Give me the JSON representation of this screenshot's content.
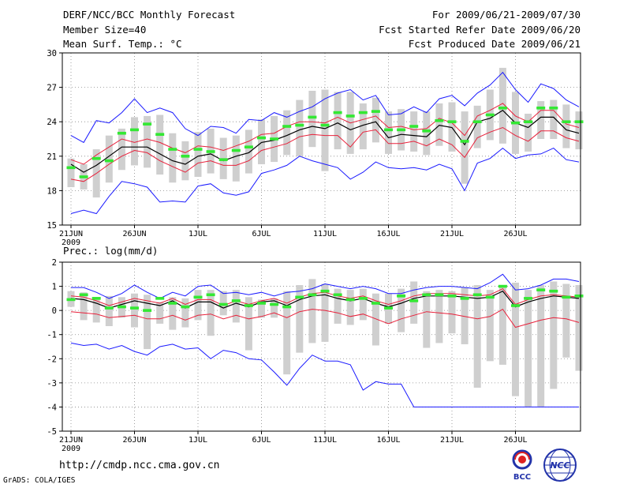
{
  "header": {
    "title": "DERF/NCC/BCC Monthly Forecast",
    "member_size": "Member Size=40",
    "variable": "Mean Surf. Temp.: °C",
    "period": "For 2009/06/21-2009/07/30",
    "started": "Fcst Started Refer Date 2009/06/20",
    "produced": "Fcst Produced Date 2009/06/21"
  },
  "footer": {
    "url": "http://cmdp.ncc.cma.gov.cn",
    "credit": "GrADS: COLA/IGES",
    "logo_bcc": "BCC",
    "logo_ncc": "NCC"
  },
  "colors": {
    "mean": "#000000",
    "spread": "#e8203a",
    "extreme": "#1a1aff",
    "box": "#cfcfcf",
    "marker": "#33e833",
    "grid": "#888888"
  },
  "chart_data": [
    {
      "type": "line",
      "title": "Mean Surf. Temp.: °C",
      "ylim": [
        15,
        30
      ],
      "yticks": [
        15,
        18,
        21,
        24,
        27,
        30
      ],
      "xticks": [
        {
          "day": 1,
          "label": "21JUN"
        },
        {
          "day": 6,
          "label": "26JUN"
        },
        {
          "day": 11,
          "label": "1JUL"
        },
        {
          "day": 16,
          "label": "6JUL"
        },
        {
          "day": 21,
          "label": "11JUL"
        },
        {
          "day": 26,
          "label": "16JUL"
        },
        {
          "day": 31,
          "label": "21JUL"
        },
        {
          "day": 36,
          "label": "26JUL"
        }
      ],
      "year_label": "2009",
      "series": [
        {
          "name": "max",
          "values": [
            22.8,
            22.2,
            24.1,
            23.9,
            24.8,
            26.0,
            24.8,
            25.2,
            24.8,
            23.4,
            22.8,
            23.6,
            23.5,
            23.0,
            24.2,
            24.1,
            24.8,
            24.4,
            24.9,
            25.3,
            26.0,
            26.5,
            26.8,
            25.9,
            26.3,
            24.6,
            24.7,
            25.3,
            24.8,
            26.0,
            26.3,
            25.4,
            26.5,
            27.2,
            28.3,
            26.8,
            25.7,
            27.3,
            26.9,
            25.9,
            25.3
          ]
        },
        {
          "name": "upper",
          "values": [
            20.7,
            20.3,
            21.1,
            21.8,
            22.5,
            22.2,
            22.5,
            22.2,
            21.7,
            21.3,
            21.9,
            21.8,
            21.5,
            21.9,
            22.3,
            22.9,
            23.0,
            23.6,
            24.0,
            24.0,
            23.9,
            24.4,
            23.9,
            24.2,
            24.5,
            23.5,
            23.6,
            23.3,
            23.4,
            24.3,
            23.9,
            22.8,
            24.5,
            25.0,
            25.6,
            24.5,
            24.0,
            25.0,
            25.0,
            23.8,
            23.5
          ]
        },
        {
          "name": "mean",
          "values": [
            20.3,
            19.6,
            20.2,
            21.0,
            21.8,
            21.8,
            21.8,
            21.2,
            20.6,
            20.3,
            21.0,
            21.2,
            20.6,
            21.0,
            21.3,
            22.2,
            22.4,
            22.8,
            23.3,
            23.6,
            23.4,
            23.9,
            23.3,
            23.7,
            24.0,
            22.6,
            22.9,
            22.8,
            22.7,
            23.7,
            23.5,
            22.0,
            24.0,
            24.3,
            25.0,
            23.9,
            23.5,
            24.4,
            24.4,
            23.3,
            23.0
          ]
        },
        {
          "name": "lower",
          "values": [
            19.0,
            18.8,
            19.5,
            20.3,
            21.0,
            21.5,
            21.3,
            20.6,
            20.1,
            19.6,
            20.4,
            20.6,
            20.2,
            20.2,
            20.6,
            21.5,
            21.8,
            22.1,
            22.7,
            22.9,
            22.8,
            22.8,
            21.8,
            23.1,
            23.3,
            22.1,
            22.1,
            22.3,
            21.9,
            22.5,
            22.0,
            20.9,
            22.6,
            23.1,
            23.5,
            22.8,
            22.3,
            23.2,
            23.2,
            22.6,
            22.3
          ]
        },
        {
          "name": "min",
          "values": [
            16.0,
            16.3,
            16.0,
            17.5,
            18.8,
            18.6,
            18.3,
            17.0,
            17.1,
            17.0,
            18.4,
            18.6,
            17.8,
            17.6,
            17.9,
            19.5,
            19.8,
            20.2,
            21.0,
            20.6,
            20.3,
            20.0,
            19.0,
            19.6,
            20.5,
            20.0,
            19.9,
            20.0,
            19.8,
            20.3,
            19.9,
            18.0,
            20.4,
            20.8,
            21.7,
            20.8,
            21.1,
            21.2,
            21.7,
            20.7,
            20.5
          ]
        },
        {
          "name": "box_top",
          "values": [
            20.8,
            20.3,
            21.6,
            22.8,
            23.4,
            24.4,
            24.5,
            24.6,
            23.0,
            22.3,
            23.1,
            23.4,
            22.6,
            22.8,
            23.3,
            24.2,
            24.5,
            25.0,
            25.9,
            26.7,
            26.8,
            26.6,
            26.6,
            25.6,
            26.1,
            24.9,
            25.1,
            24.9,
            24.9,
            25.6,
            25.7,
            24.9,
            25.4,
            26.8,
            28.7,
            26.6,
            24.7,
            25.8,
            25.9,
            25.5,
            24.9
          ]
        },
        {
          "name": "box_bottom",
          "values": [
            18.3,
            18.1,
            17.4,
            18.7,
            19.8,
            20.2,
            20.0,
            19.4,
            18.7,
            18.9,
            19.2,
            19.5,
            19.0,
            18.8,
            19.5,
            20.3,
            20.5,
            21.1,
            21.0,
            21.8,
            19.7,
            21.6,
            21.2,
            21.6,
            22.2,
            21.2,
            21.5,
            21.4,
            21.1,
            21.9,
            21.4,
            18.6,
            21.7,
            22.4,
            22.1,
            21.2,
            21.4,
            22.5,
            22.5,
            21.7,
            21.6
          ]
        },
        {
          "name": "marker",
          "values": [
            20.0,
            19.2,
            20.8,
            20.6,
            23.0,
            23.3,
            23.8,
            22.9,
            21.6,
            21.0,
            21.6,
            21.4,
            20.7,
            21.5,
            21.8,
            22.6,
            22.5,
            23.6,
            23.7,
            24.4,
            23.7,
            24.8,
            24.5,
            24.8,
            24.9,
            23.3,
            23.3,
            23.6,
            23.2,
            24.1,
            24.0,
            22.3,
            24.0,
            24.6,
            25.2,
            23.9,
            24.0,
            25.2,
            25.2,
            24.0,
            24.0
          ]
        }
      ]
    },
    {
      "type": "line",
      "title": "Prec.: log(mm/d)",
      "ylim": [
        -5,
        2
      ],
      "yticks": [
        -5,
        -4,
        -3,
        -2,
        -1,
        0,
        1,
        2
      ],
      "xticks": [
        {
          "day": 1,
          "label": "21JUN"
        },
        {
          "day": 6,
          "label": "26JUN"
        },
        {
          "day": 11,
          "label": "1JUL"
        },
        {
          "day": 16,
          "label": "6JUL"
        },
        {
          "day": 21,
          "label": "11JUL"
        },
        {
          "day": 26,
          "label": "16JUL"
        },
        {
          "day": 31,
          "label": "21JUL"
        },
        {
          "day": 36,
          "label": "26JUL"
        }
      ],
      "year_label": "2009",
      "series": [
        {
          "name": "max",
          "values": [
            0.95,
            0.95,
            0.75,
            0.5,
            0.7,
            1.05,
            0.75,
            0.5,
            0.75,
            0.6,
            1.0,
            1.05,
            0.7,
            0.75,
            0.65,
            0.75,
            0.6,
            0.75,
            0.8,
            0.9,
            1.1,
            1.0,
            0.9,
            1.0,
            0.9,
            0.7,
            0.7,
            0.85,
            0.95,
            1.0,
            1.0,
            0.95,
            0.9,
            1.15,
            1.5,
            0.85,
            0.9,
            1.05,
            1.3,
            1.3,
            1.2
          ]
        },
        {
          "name": "upper",
          "values": [
            0.6,
            0.55,
            0.4,
            0.2,
            0.35,
            0.5,
            0.4,
            0.3,
            0.5,
            0.25,
            0.45,
            0.45,
            0.2,
            0.4,
            0.25,
            0.4,
            0.5,
            0.3,
            0.55,
            0.7,
            0.75,
            0.6,
            0.5,
            0.6,
            0.4,
            0.25,
            0.4,
            0.6,
            0.7,
            0.7,
            0.7,
            0.65,
            0.6,
            0.65,
            0.9,
            0.25,
            0.45,
            0.6,
            0.65,
            0.6,
            0.55
          ]
        },
        {
          "name": "mean",
          "values": [
            0.5,
            0.45,
            0.3,
            0.1,
            0.25,
            0.4,
            0.3,
            0.2,
            0.4,
            0.1,
            0.35,
            0.35,
            0.1,
            0.3,
            0.15,
            0.35,
            0.4,
            0.2,
            0.45,
            0.6,
            0.65,
            0.5,
            0.4,
            0.5,
            0.3,
            0.15,
            0.3,
            0.5,
            0.6,
            0.6,
            0.6,
            0.55,
            0.5,
            0.55,
            0.8,
            0.15,
            0.35,
            0.5,
            0.6,
            0.55,
            0.5
          ]
        },
        {
          "name": "lower",
          "values": [
            -0.05,
            -0.1,
            -0.15,
            -0.3,
            -0.25,
            -0.2,
            -0.35,
            -0.35,
            -0.2,
            -0.4,
            -0.2,
            -0.15,
            -0.35,
            -0.2,
            -0.35,
            -0.25,
            -0.1,
            -0.3,
            -0.05,
            0.05,
            0.0,
            -0.1,
            -0.25,
            -0.15,
            -0.35,
            -0.55,
            -0.35,
            -0.2,
            -0.05,
            -0.1,
            -0.15,
            -0.25,
            -0.35,
            -0.25,
            0.05,
            -0.7,
            -0.55,
            -0.4,
            -0.3,
            -0.35,
            -0.5
          ]
        },
        {
          "name": "min",
          "values": [
            -1.35,
            -1.45,
            -1.4,
            -1.6,
            -1.45,
            -1.7,
            -1.85,
            -1.5,
            -1.4,
            -1.6,
            -1.55,
            -2.0,
            -1.65,
            -1.75,
            -2.0,
            -2.05,
            -2.55,
            -3.1,
            -2.4,
            -1.85,
            -2.1,
            -2.1,
            -2.25,
            -3.3,
            -2.95,
            -3.05,
            -3.05,
            -4.0,
            -4.0,
            -4.0,
            -4.0,
            -4.0,
            -4.0,
            -4.0,
            -4.0,
            -4.0,
            -4.0,
            -4.0,
            -4.0,
            -4.0,
            -4.0
          ]
        },
        {
          "name": "box_top",
          "values": [
            0.8,
            0.75,
            0.45,
            0.6,
            0.55,
            0.7,
            0.65,
            0.35,
            0.55,
            0.5,
            0.85,
            0.85,
            0.8,
            0.85,
            0.55,
            0.45,
            0.5,
            0.8,
            1.05,
            1.3,
            1.1,
            0.9,
            0.85,
            0.9,
            0.7,
            0.7,
            0.9,
            1.2,
            0.8,
            0.85,
            0.8,
            0.95,
            1.05,
            0.85,
            1.0,
            1.15,
            0.85,
            1.05,
            1.2,
            1.1,
            1.05
          ]
        },
        {
          "name": "box_bottom",
          "values": [
            0.15,
            -0.4,
            -0.5,
            -0.65,
            -0.3,
            -0.7,
            -1.6,
            -0.55,
            -0.8,
            -0.7,
            -0.4,
            -1.05,
            -0.2,
            -0.5,
            -1.65,
            -0.3,
            -0.3,
            -2.65,
            -1.75,
            -1.35,
            -1.3,
            -0.55,
            -0.6,
            -0.4,
            -1.45,
            -0.55,
            -0.9,
            -0.55,
            -1.55,
            -1.35,
            -0.95,
            -1.4,
            -3.2,
            -2.1,
            -2.25,
            -3.55,
            -4.0,
            -4.0,
            -3.25,
            -1.95,
            -2.5
          ]
        },
        {
          "name": "marker",
          "values": [
            0.45,
            0.65,
            0.5,
            0.1,
            0.15,
            0.1,
            0.0,
            0.5,
            0.3,
            0.15,
            0.55,
            0.65,
            0.25,
            0.4,
            0.2,
            0.3,
            0.25,
            0.15,
            0.55,
            0.65,
            0.8,
            0.65,
            0.45,
            0.5,
            0.3,
            0.1,
            0.6,
            0.4,
            0.65,
            0.65,
            0.6,
            0.5,
            0.65,
            0.55,
            1.0,
            0.2,
            0.5,
            0.85,
            0.8,
            0.55,
            0.6
          ]
        }
      ]
    }
  ]
}
